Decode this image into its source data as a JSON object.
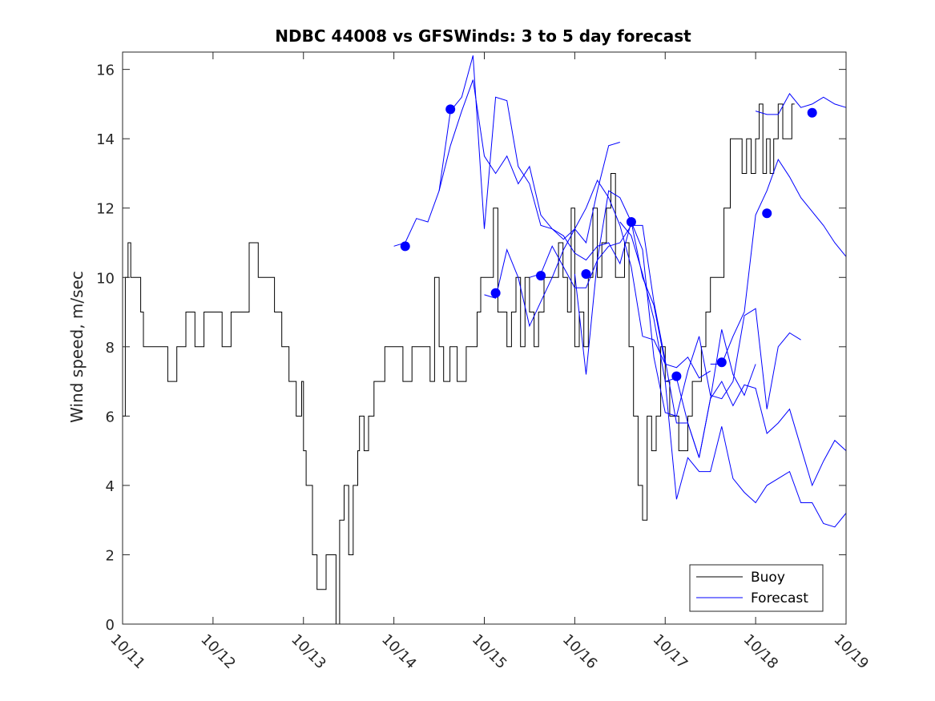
{
  "chart_data": {
    "type": "line",
    "title": "NDBC 44008 vs GFSWinds: 3 to 5 day forecast",
    "xlabel": "",
    "ylabel": "Wind speed, m/sec",
    "xlim": [
      0,
      8
    ],
    "ylim": [
      0,
      16.5
    ],
    "x_tick_values": [
      0,
      1,
      2,
      3,
      4,
      5,
      6,
      7,
      8
    ],
    "x_tick_labels": [
      "10/11",
      "10/12",
      "10/13",
      "10/14",
      "10/15",
      "10/16",
      "10/17",
      "10/18",
      "10/19"
    ],
    "y_tick_values": [
      0,
      2,
      4,
      6,
      8,
      10,
      12,
      14,
      16
    ],
    "y_tick_labels": [
      "0",
      "2",
      "4",
      "6",
      "8",
      "10",
      "12",
      "14",
      "16"
    ],
    "legend": {
      "placement": "bottom-right",
      "entries": [
        "Buoy",
        "Forecast"
      ]
    },
    "colors": {
      "buoy": "#000000",
      "forecast": "#0000ff",
      "axis": "#262626"
    },
    "series": [
      {
        "name": "Buoy",
        "x": [
          0,
          0.03,
          0.06,
          0.09,
          0.2,
          0.23,
          0.26,
          0.3,
          0.36,
          0.45,
          0.5,
          0.54,
          0.6,
          0.64,
          0.7,
          0.76,
          0.8,
          0.9,
          1.0,
          1.1,
          1.2,
          1.3,
          1.4,
          1.5,
          1.58,
          1.68,
          1.76,
          1.84,
          1.92,
          1.98,
          2.0,
          2.03,
          2.1,
          2.15,
          2.2,
          2.25,
          2.3,
          2.33,
          2.36,
          2.4,
          2.45,
          2.5,
          2.55,
          2.6,
          2.62,
          2.67,
          2.72,
          2.78,
          2.84,
          2.9,
          2.95,
          3.0,
          3.1,
          3.2,
          3.3,
          3.4,
          3.45,
          3.5,
          3.55,
          3.62,
          3.7,
          3.8,
          3.9,
          3.92,
          3.96,
          4.0,
          4.05,
          4.1,
          4.15,
          4.2,
          4.25,
          4.3,
          4.35,
          4.4,
          4.45,
          4.5,
          4.55,
          4.6,
          4.66,
          4.72,
          4.78,
          4.82,
          4.87,
          4.92,
          4.96,
          5.0,
          5.05,
          5.1,
          5.15,
          5.2,
          5.25,
          5.3,
          5.35,
          5.4,
          5.45,
          5.5,
          5.55,
          5.6,
          5.65,
          5.7,
          5.75,
          5.8,
          5.85,
          5.9,
          5.95,
          6.0,
          6.05,
          6.1,
          6.15,
          6.2,
          6.25,
          6.3,
          6.35,
          6.4,
          6.45,
          6.5,
          6.55,
          6.6,
          6.65,
          6.72,
          6.8,
          6.85,
          6.9,
          6.95,
          7.0,
          7.04,
          7.08,
          7.12,
          7.16,
          7.2,
          7.25,
          7.3,
          7.35,
          7.4
        ],
        "values": [
          6,
          10,
          11,
          10,
          9,
          8,
          8,
          8,
          8,
          8,
          7,
          7,
          8,
          8,
          9,
          9,
          8,
          9,
          9,
          8,
          9,
          9,
          11,
          10,
          10,
          9,
          8,
          7,
          6,
          7,
          5,
          4,
          2,
          1,
          1,
          2,
          2,
          2,
          0,
          3,
          4,
          2,
          4,
          5,
          6,
          5,
          6,
          7,
          7,
          8,
          8,
          8,
          7,
          8,
          8,
          7,
          10,
          8,
          7,
          8,
          7,
          8,
          8,
          9,
          10,
          10,
          10,
          12,
          9,
          9,
          8,
          9,
          10,
          8,
          10,
          9,
          8,
          9,
          10,
          10,
          10,
          11,
          10,
          9,
          12,
          8,
          9,
          8,
          10,
          12,
          10,
          11,
          12,
          13,
          10,
          10,
          11,
          8,
          6,
          4,
          3,
          6,
          5,
          6,
          8,
          7,
          6,
          6,
          5,
          5,
          6,
          7,
          7,
          8,
          9,
          10,
          10,
          10,
          12,
          14,
          14,
          13,
          14,
          13,
          14,
          15,
          13,
          14,
          13,
          14,
          15,
          14,
          14,
          15
        ]
      },
      {
        "name": "Forecast",
        "traces": [
          {
            "x": [
              3.0,
              3.125,
              3.25,
              3.375,
              3.5,
              3.625,
              3.75,
              3.875,
              4.0,
              4.125,
              4.25,
              4.375,
              4.5,
              4.625,
              4.75,
              4.875,
              5.0,
              5.125,
              5.25,
              5.375,
              5.5
            ],
            "values": [
              10.9,
              11.0,
              11.7,
              11.6,
              12.5,
              13.8,
              14.8,
              15.7,
              13.5,
              13.0,
              13.5,
              12.7,
              13.2,
              11.8,
              11.4,
              11.1,
              11.4,
              11.0,
              12.5,
              13.8,
              13.9
            ]
          },
          {
            "x": [
              3.5,
              3.625,
              3.75,
              3.875,
              4.0,
              4.125,
              4.25,
              4.375,
              4.5,
              4.625,
              4.75,
              4.875,
              5.0,
              5.125,
              5.25,
              5.375,
              5.5,
              5.625,
              5.75,
              5.875,
              6.0
            ],
            "values": [
              12.5,
              14.8,
              15.2,
              16.4,
              11.4,
              15.2,
              15.1,
              13.2,
              12.7,
              11.5,
              11.4,
              11.2,
              10.7,
              10.5,
              10.9,
              11.0,
              10.4,
              11.6,
              10.0,
              9.2,
              7.5
            ]
          },
          {
            "x": [
              4.0,
              4.125,
              4.25,
              4.375,
              4.5,
              4.625,
              4.75,
              4.875,
              5.0,
              5.125,
              5.25,
              5.375,
              5.5,
              5.625,
              5.75,
              5.875,
              6.0,
              6.125,
              6.25,
              6.375,
              6.5
            ],
            "values": [
              9.5,
              9.4,
              10.8,
              10.0,
              8.6,
              9.3,
              10.0,
              10.8,
              11.4,
              12.0,
              12.8,
              12.3,
              11.5,
              10.3,
              8.3,
              8.2,
              7.5,
              7.4,
              7.7,
              7.1,
              7.3
            ]
          },
          {
            "x": [
              4.5,
              4.625,
              4.75,
              4.875,
              5.0,
              5.125,
              5.25,
              5.375,
              5.5,
              5.625,
              5.75,
              5.875,
              6.0,
              6.125,
              6.25,
              6.375,
              6.5,
              6.625,
              6.75,
              6.875,
              7.0
            ],
            "values": [
              10.0,
              10.1,
              10.9,
              10.3,
              9.7,
              9.7,
              10.5,
              10.9,
              11.0,
              11.5,
              11.5,
              9.3,
              7.6,
              5.8,
              5.8,
              4.8,
              6.5,
              8.5,
              7.2,
              6.6,
              7.5
            ]
          },
          {
            "x": [
              5.0,
              5.125,
              5.25,
              5.375,
              5.5,
              5.625,
              5.75,
              5.875,
              6.0,
              6.125,
              6.25,
              6.375,
              6.5,
              6.625,
              6.75,
              6.875,
              7.0,
              7.125,
              7.25,
              7.375,
              7.5
            ],
            "values": [
              10.1,
              7.2,
              10.5,
              12.5,
              12.3,
              11.6,
              10.8,
              7.7,
              6.1,
              6.0,
              7.3,
              8.3,
              6.6,
              6.5,
              7.0,
              8.9,
              9.1,
              6.2,
              8.0,
              8.4,
              8.2
            ]
          },
          {
            "x": [
              5.5,
              5.625,
              5.75,
              5.875,
              6.0,
              6.125,
              6.25,
              6.375,
              6.5,
              6.625,
              6.75,
              6.875,
              7.0,
              7.125,
              7.25,
              7.375,
              7.5,
              7.625,
              7.75,
              7.875,
              8.0
            ],
            "values": [
              11.6,
              11.2,
              10.1,
              8.8,
              7.0,
              7.1,
              5.8,
              4.8,
              6.5,
              7.0,
              6.3,
              6.9,
              6.8,
              5.5,
              5.8,
              6.2,
              5.1,
              4.0,
              4.7,
              5.3,
              5.0
            ]
          },
          {
            "x": [
              6.0,
              6.125,
              6.25,
              6.375,
              6.5,
              6.625,
              6.75,
              6.875,
              7.0,
              7.125,
              7.25,
              7.375,
              7.5,
              7.625,
              7.75,
              7.875,
              8.0
            ],
            "values": [
              7.0,
              3.6,
              4.8,
              4.4,
              4.4,
              5.7,
              4.2,
              3.8,
              3.5,
              4.0,
              4.2,
              4.4,
              3.5,
              3.5,
              2.9,
              2.8,
              3.2
            ]
          },
          {
            "x": [
              6.5,
              6.625,
              6.75,
              6.875,
              7.0,
              7.125,
              7.25,
              7.375,
              7.5,
              7.625,
              7.75,
              7.875,
              8.0
            ],
            "values": [
              7.5,
              7.5,
              8.3,
              9.0,
              11.8,
              12.5,
              13.4,
              12.9,
              12.3,
              11.9,
              11.5,
              11.0,
              10.6
            ]
          },
          {
            "x": [
              7.0,
              7.125,
              7.25,
              7.375,
              7.5,
              7.625,
              7.75,
              7.875,
              8.0
            ],
            "values": [
              14.8,
              14.7,
              14.7,
              15.3,
              14.9,
              15.0,
              15.2,
              15.0,
              14.9
            ]
          }
        ],
        "markers": {
          "x": [
            3.125,
            3.625,
            4.125,
            4.625,
            5.125,
            5.625,
            6.125,
            6.625,
            7.125,
            7.625
          ],
          "values": [
            10.9,
            14.85,
            9.55,
            10.05,
            10.1,
            11.6,
            7.15,
            7.55,
            11.85,
            14.75
          ]
        }
      }
    ]
  }
}
